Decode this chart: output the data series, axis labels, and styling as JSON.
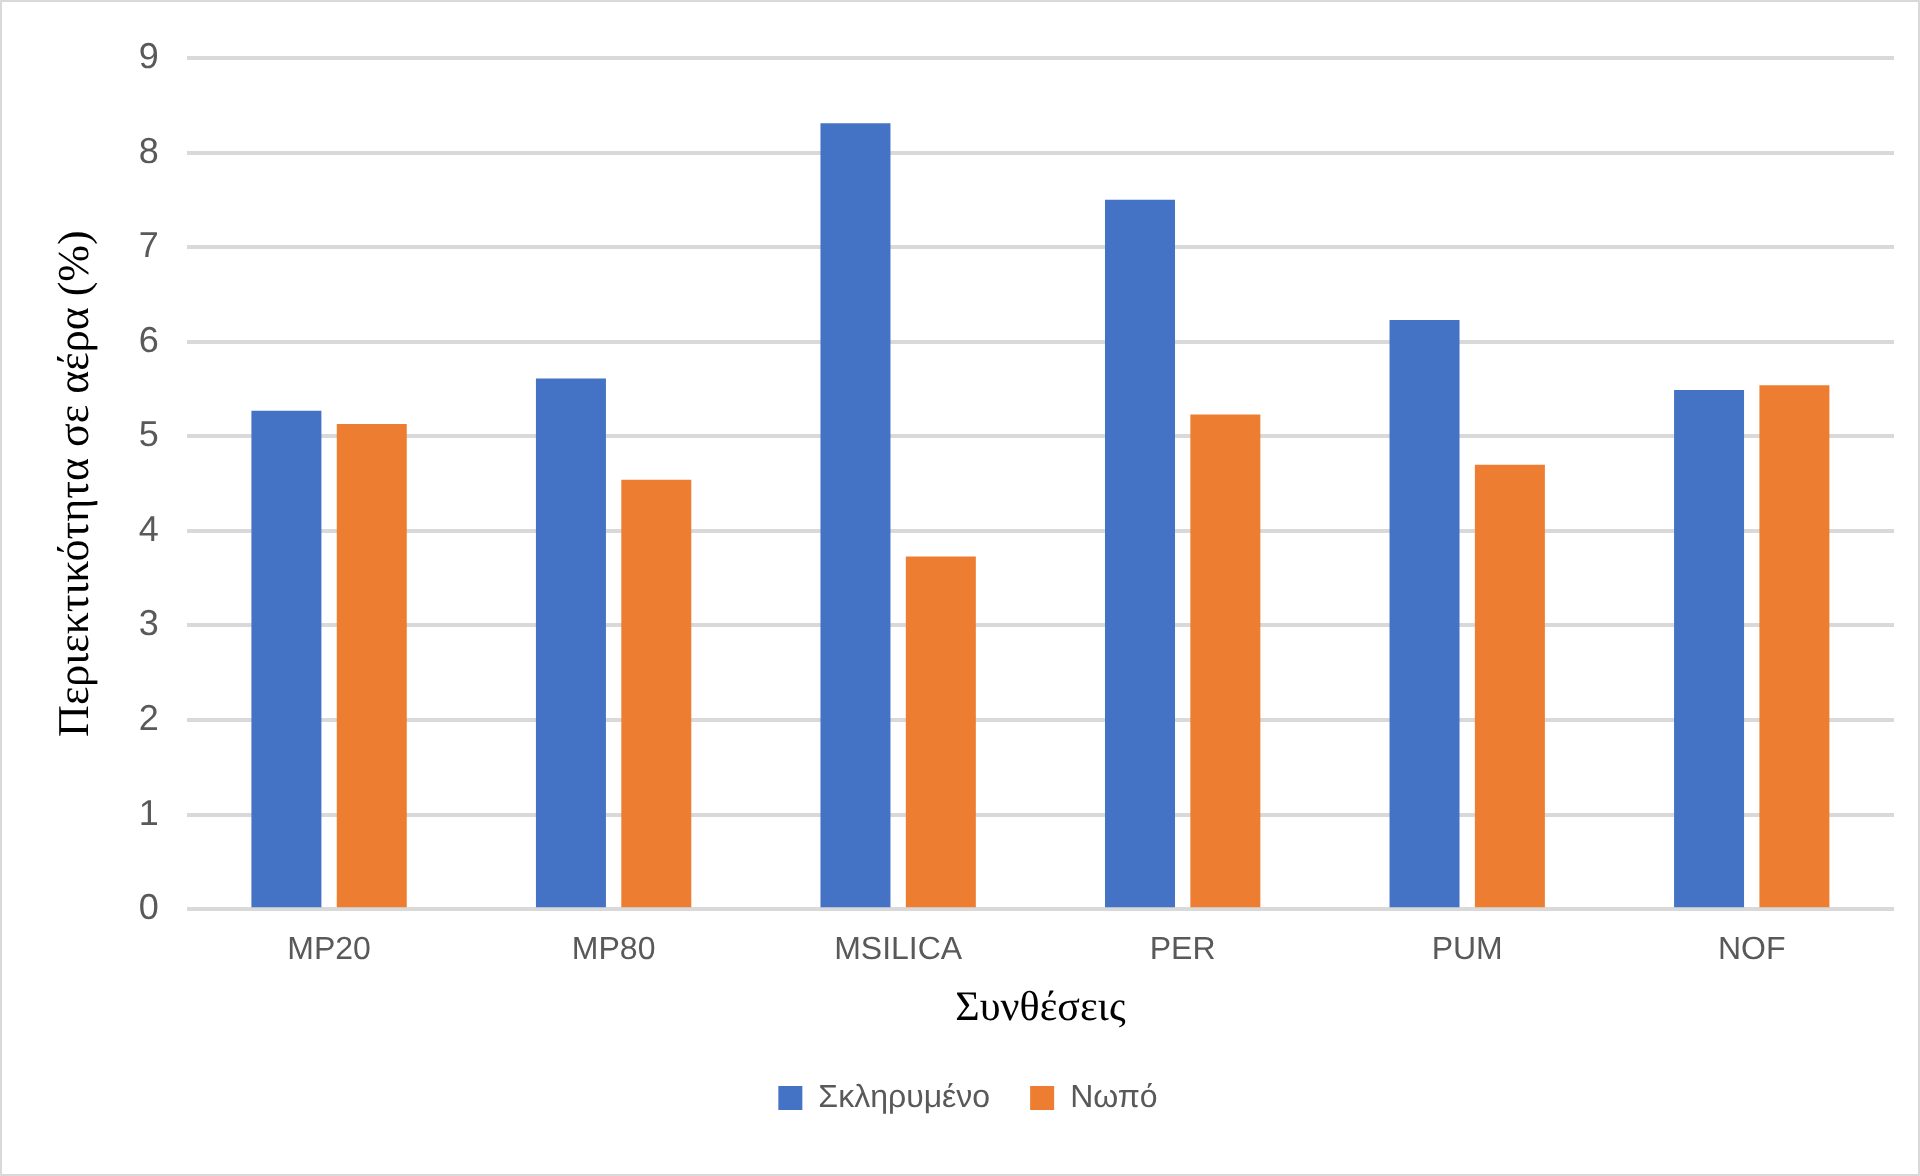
{
  "chart_data": {
    "type": "bar",
    "xlabel": "Συνθέσεις",
    "ylabel": "Περιεκτικότητα σε αέρα (%)",
    "categories": [
      "MP20",
      "MP80",
      "MSILICA",
      "PER",
      "PUM",
      "NOF"
    ],
    "series": [
      {
        "name": "Σκληρυμένο",
        "color": "#4472c4",
        "values": [
          5.27,
          5.61,
          8.31,
          7.5,
          6.23,
          5.49
        ]
      },
      {
        "name": "Νωπό",
        "color": "#ed7d31",
        "values": [
          5.13,
          4.54,
          3.73,
          5.23,
          4.7,
          5.54
        ]
      }
    ],
    "ylim": [
      0,
      9
    ],
    "yticks": [
      0,
      1,
      2,
      3,
      4,
      5,
      6,
      7,
      8,
      9
    ],
    "grid": "y",
    "legend": "bottom"
  }
}
